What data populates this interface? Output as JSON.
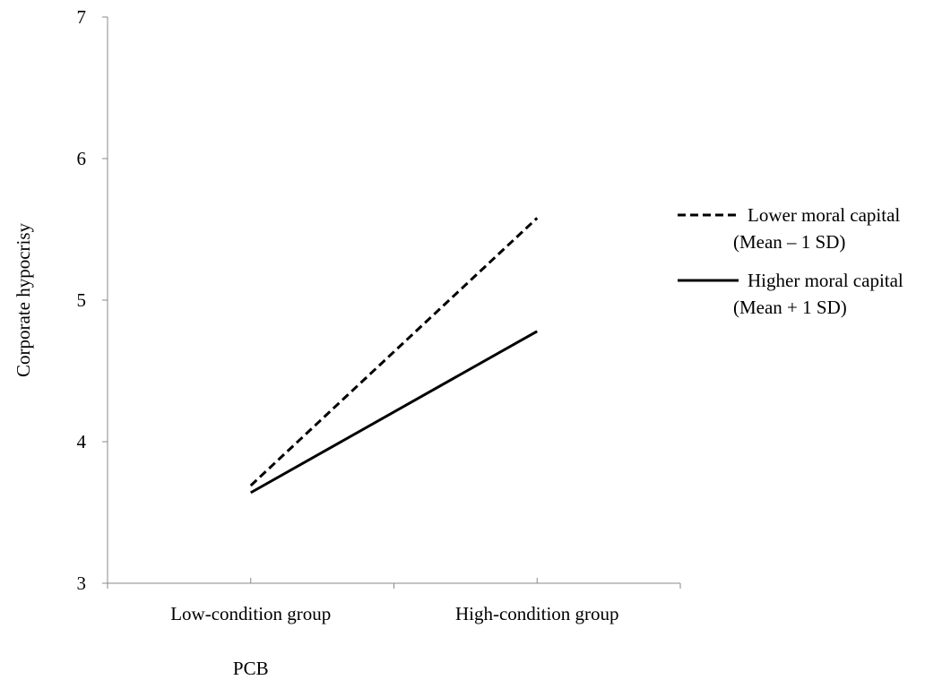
{
  "chart_data": {
    "type": "line",
    "title": "",
    "xlabel": "PCB",
    "ylabel": "Corporate hypocrisy",
    "categories": [
      "Low-condition group",
      "High-condition group"
    ],
    "ylim": [
      3,
      7
    ],
    "yticks": [
      "3",
      "4",
      "5",
      "6",
      "7"
    ],
    "grid": false,
    "legend_position": "right",
    "series": [
      {
        "name_line1": "Lower moral capital",
        "name_line2": "(Mean – 1 SD)",
        "values": [
          3.69,
          5.58
        ],
        "style": "dashed",
        "color": "#000000"
      },
      {
        "name_line1": "Higher moral capital",
        "name_line2": "(Mean + 1 SD)",
        "values": [
          3.64,
          4.78
        ],
        "style": "solid",
        "color": "#000000"
      }
    ]
  }
}
